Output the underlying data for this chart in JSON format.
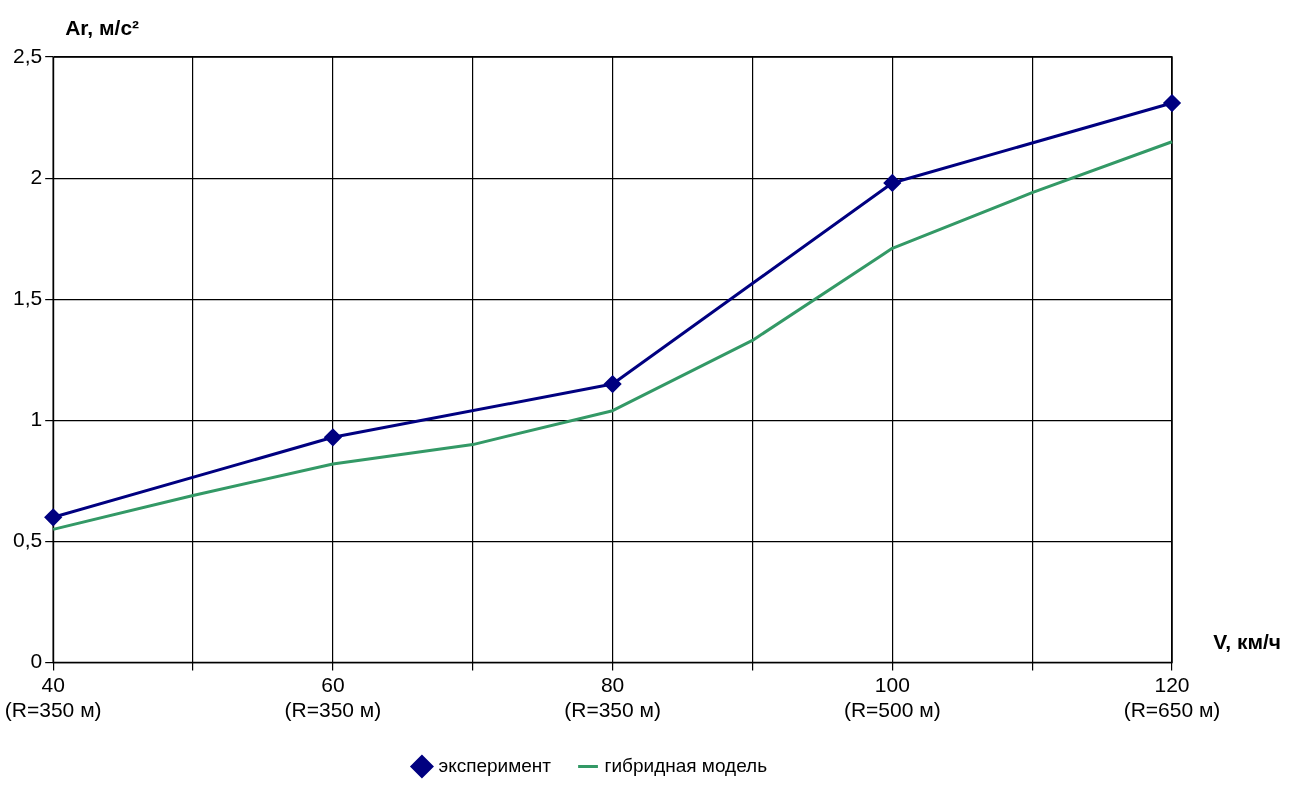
{
  "chart_data": {
    "type": "line",
    "xlabel": "V, км/ч",
    "ylabel": "Ar, м/с²",
    "categories": [
      "40\n(R=350 м)",
      null,
      "60\n(R=350 м)",
      null,
      "80\n(R=350 м)",
      null,
      "100\n(R=500 м)",
      null,
      "120\n(R=650 м)"
    ],
    "ylim": [
      0,
      2.5
    ],
    "yticks": [
      {
        "value": 0,
        "label": "0"
      },
      {
        "value": 0.5,
        "label": "0,5"
      },
      {
        "value": 1,
        "label": "1"
      },
      {
        "value": 1.5,
        "label": "1,5"
      },
      {
        "value": 2,
        "label": "2"
      },
      {
        "value": 2.5,
        "label": "2,5"
      }
    ],
    "grid": true,
    "legend": "bottom",
    "series": [
      {
        "name": "эксперимент",
        "color": "#000080",
        "marker": "diamond",
        "values": [
          0.6,
          null,
          0.93,
          null,
          1.15,
          null,
          1.98,
          null,
          2.31
        ]
      },
      {
        "name": "гибридная модель",
        "color": "#339966",
        "marker": "none",
        "values": [
          0.55,
          0.69,
          0.82,
          0.9,
          1.04,
          1.33,
          1.71,
          1.94,
          2.15
        ]
      }
    ]
  }
}
